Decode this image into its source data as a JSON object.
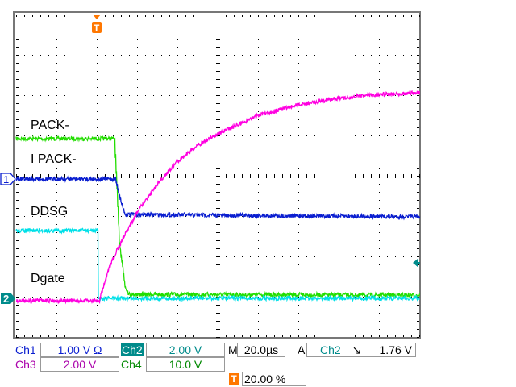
{
  "chart_data": {
    "type": "line",
    "title": "",
    "xunit": "µs",
    "xlim": [
      -40,
      160
    ],
    "ylim_div": [
      -4,
      4
    ],
    "grid": true,
    "trace_labels": [
      "PACK-",
      "I PACK-",
      "DDSG",
      "Dgate"
    ],
    "series": [
      {
        "channel": "Ch4",
        "color": "#22dd00",
        "t": [
          -40,
          8.8,
          11.2,
          14,
          16,
          160
        ],
        "div": [
          0.92,
          0.92,
          -1.64,
          -2.74,
          -2.94,
          -2.96
        ]
      },
      {
        "channel": "Ch1",
        "color": "#0a1ed0",
        "t": [
          -40,
          9.2,
          12,
          14,
          160
        ],
        "div": [
          -0.08,
          -0.08,
          -0.64,
          -0.96,
          -1.02
        ]
      },
      {
        "channel": "Ch2",
        "color": "#00e0e8",
        "t": [
          -40,
          0.4,
          0.6,
          160
        ],
        "div": [
          -1.36,
          -1.36,
          -3.04,
          -3.04
        ]
      },
      {
        "channel": "Ch3",
        "color": "#ff00e0",
        "t": [
          -40,
          1.2,
          6,
          10,
          14,
          20,
          30,
          40,
          50,
          60,
          80,
          100,
          120,
          140,
          160
        ],
        "div": [
          -3.1,
          -3.1,
          -2.3,
          -1.84,
          -1.44,
          -0.9,
          -0.2,
          0.36,
          0.76,
          1.04,
          1.5,
          1.76,
          1.92,
          2.02,
          2.06
        ]
      }
    ]
  },
  "markers": {
    "ch1": "1",
    "ch2": "2",
    "trigger": "T"
  },
  "readout": {
    "ch1_label": "Ch1",
    "ch1_scale": "1.00 V Ω",
    "ch2_label": "Ch2",
    "ch2_scale": "2.00 V",
    "ch3_label": "Ch3",
    "ch3_scale": "2.00 V",
    "ch4_label": "Ch4",
    "ch4_scale": "10.0 V",
    "m_label": "M",
    "timebase": "20.0µs",
    "a_label": "A",
    "trig_source": "Ch2",
    "trig_slope": "↘",
    "trig_level": "1.76 V",
    "trig_pos": "20.00 %"
  },
  "colors": {
    "ch1": "#0a1ed0",
    "ch2": "#008b8b",
    "ch3": "#aa00aa",
    "ch4": "#008800",
    "trigger": "#ff7700"
  }
}
